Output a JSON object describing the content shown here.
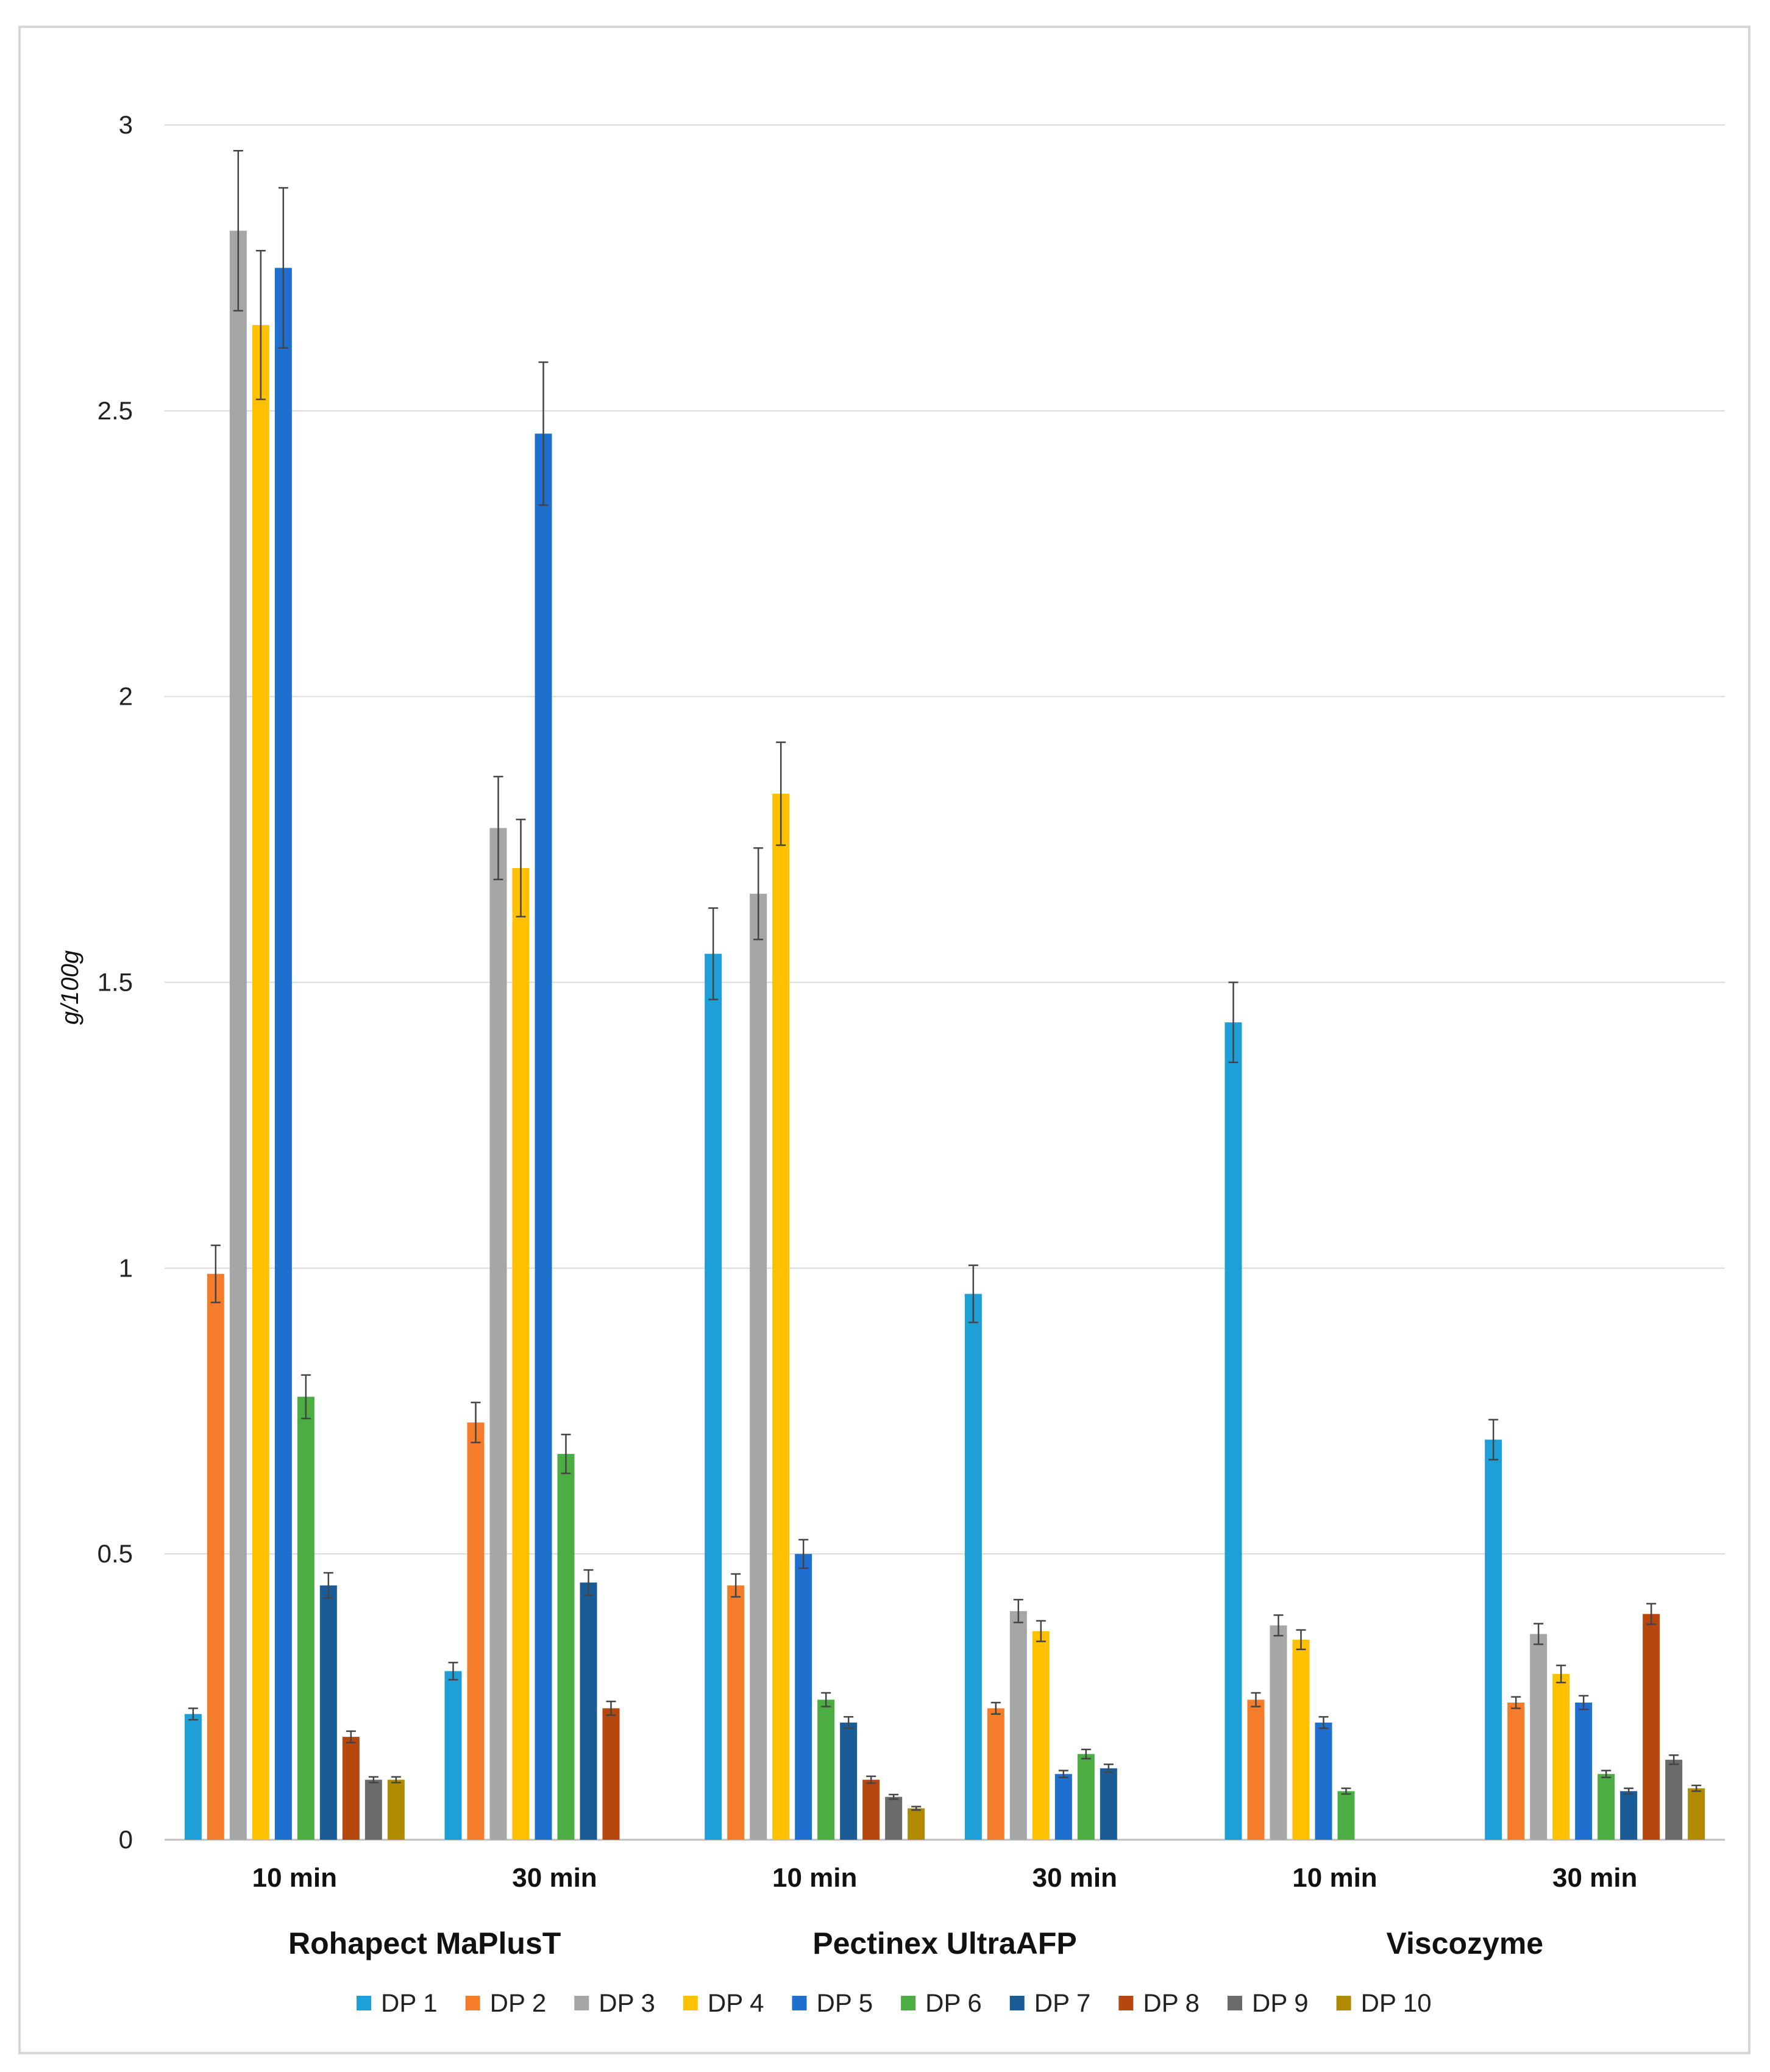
{
  "chart_data": {
    "type": "bar",
    "title": "",
    "ylabel": "g/100g",
    "xlabel": "",
    "ylim": [
      0,
      3
    ],
    "yticks": [
      0,
      0.5,
      1,
      1.5,
      2,
      2.5,
      3
    ],
    "ytick_labels": [
      "0",
      "0.5",
      "1",
      "1.5",
      "2",
      "2.5",
      "3"
    ],
    "grid": true,
    "legend_position": "bottom",
    "groups": [
      {
        "label": "Rohapect MaPlusT",
        "subcategories": [
          "10 min",
          "30 min"
        ]
      },
      {
        "label": "Pectinex UltraAFP",
        "subcategories": [
          "10 min",
          "30 min"
        ]
      },
      {
        "label": "Viscozyme",
        "subcategories": [
          "10 min",
          "30 min"
        ]
      }
    ],
    "categories": [
      "10 min",
      "30 min",
      "10 min",
      "30 min",
      "10 min",
      "30 min"
    ],
    "series": [
      {
        "name": "DP 1",
        "color": "#1e9fd8",
        "values": [
          0.22,
          0.295,
          1.55,
          0.955,
          1.43,
          0.7
        ],
        "errors": [
          0.01,
          0.015,
          0.08,
          0.05,
          0.07,
          0.035
        ]
      },
      {
        "name": "DP 2",
        "color": "#f57c2b",
        "values": [
          0.99,
          0.73,
          0.445,
          0.23,
          0.245,
          0.24
        ],
        "errors": [
          0.05,
          0.035,
          0.02,
          0.01,
          0.012,
          0.01
        ]
      },
      {
        "name": "DP 3",
        "color": "#a6a6a6",
        "values": [
          2.815,
          1.77,
          1.655,
          0.4,
          0.375,
          0.36
        ],
        "errors": [
          0.14,
          0.09,
          0.08,
          0.02,
          0.018,
          0.018
        ]
      },
      {
        "name": "DP 4",
        "color": "#ffc000",
        "values": [
          2.65,
          1.7,
          1.83,
          0.365,
          0.35,
          0.29
        ],
        "errors": [
          0.13,
          0.085,
          0.09,
          0.018,
          0.017,
          0.015
        ]
      },
      {
        "name": "DP 5",
        "color": "#1f6fcf",
        "values": [
          2.75,
          2.46,
          0.5,
          0.115,
          0.205,
          0.24
        ],
        "errors": [
          0.14,
          0.125,
          0.025,
          0.006,
          0.01,
          0.012
        ]
      },
      {
        "name": "DP 6",
        "color": "#4cad43",
        "values": [
          0.775,
          0.675,
          0.245,
          0.15,
          0.085,
          0.115
        ],
        "errors": [
          0.038,
          0.034,
          0.012,
          0.008,
          0.005,
          0.006
        ]
      },
      {
        "name": "DP 7",
        "color": "#1a5c96",
        "values": [
          0.445,
          0.45,
          0.205,
          0.125,
          null,
          0.085
        ],
        "errors": [
          0.022,
          0.022,
          0.01,
          0.007,
          null,
          0.005
        ]
      },
      {
        "name": "DP 8",
        "color": "#b5470f",
        "values": [
          0.18,
          0.23,
          0.105,
          null,
          null,
          0.395
        ],
        "errors": [
          0.01,
          0.012,
          0.006,
          null,
          null,
          0.018
        ]
      },
      {
        "name": "DP 9",
        "color": "#6b6b6b",
        "values": [
          0.105,
          null,
          0.075,
          null,
          null,
          0.14
        ],
        "errors": [
          0.005,
          null,
          0.004,
          null,
          null,
          0.008
        ]
      },
      {
        "name": "DP 10",
        "color": "#b08a00",
        "values": [
          0.105,
          null,
          0.055,
          null,
          null,
          0.09
        ],
        "errors": [
          0.005,
          null,
          0.003,
          null,
          null,
          0.005
        ]
      }
    ]
  }
}
